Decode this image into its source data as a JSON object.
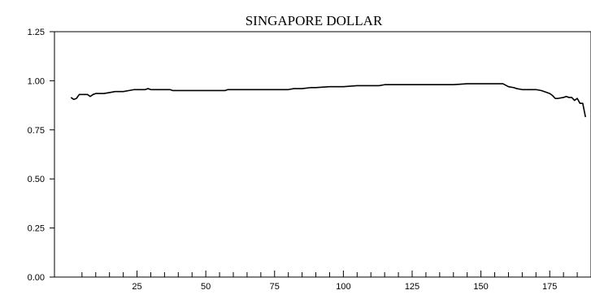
{
  "chart_data": {
    "type": "line",
    "title": "SINGAPORE DOLLAR",
    "xlabel": "",
    "ylabel": "",
    "xlim": [
      -5,
      190
    ],
    "ylim": [
      0,
      1.25
    ],
    "yticks": [
      "0.00",
      "0.25",
      "0.50",
      "0.75",
      "1.00",
      "1.25"
    ],
    "xtick_labels": [
      "25",
      "50",
      "75",
      "100",
      "125",
      "150",
      "175"
    ],
    "minor_tick_step": 5,
    "grid": false,
    "line_color": "#000000",
    "series": [
      {
        "x": [
          1,
          2,
          3,
          4,
          5,
          7,
          8,
          9,
          10,
          11,
          12,
          13,
          15,
          17,
          18,
          19,
          20,
          22,
          24,
          25,
          26,
          28,
          29,
          30,
          31,
          33,
          35,
          37,
          38,
          40,
          45,
          50,
          55,
          57,
          58,
          60,
          65,
          70,
          75,
          80,
          82,
          85,
          88,
          90,
          95,
          100,
          105,
          110,
          113,
          115,
          120,
          125,
          130,
          135,
          140,
          145,
          150,
          155,
          158,
          160,
          162,
          163,
          165,
          167,
          169,
          170,
          172,
          174,
          175,
          176,
          177,
          178,
          180,
          181,
          182,
          183,
          184,
          185,
          186,
          187,
          188
        ],
        "y": [
          0.915,
          0.905,
          0.91,
          0.93,
          0.93,
          0.93,
          0.92,
          0.93,
          0.935,
          0.935,
          0.935,
          0.935,
          0.94,
          0.945,
          0.945,
          0.945,
          0.945,
          0.95,
          0.955,
          0.955,
          0.955,
          0.955,
          0.96,
          0.955,
          0.955,
          0.955,
          0.955,
          0.955,
          0.95,
          0.95,
          0.95,
          0.95,
          0.95,
          0.95,
          0.955,
          0.955,
          0.955,
          0.955,
          0.955,
          0.955,
          0.96,
          0.96,
          0.965,
          0.965,
          0.97,
          0.97,
          0.975,
          0.975,
          0.975,
          0.98,
          0.98,
          0.98,
          0.98,
          0.98,
          0.98,
          0.985,
          0.985,
          0.985,
          0.985,
          0.97,
          0.965,
          0.96,
          0.955,
          0.955,
          0.955,
          0.955,
          0.95,
          0.94,
          0.935,
          0.925,
          0.91,
          0.91,
          0.915,
          0.92,
          0.915,
          0.915,
          0.9,
          0.91,
          0.885,
          0.885,
          0.815
        ]
      }
    ]
  }
}
